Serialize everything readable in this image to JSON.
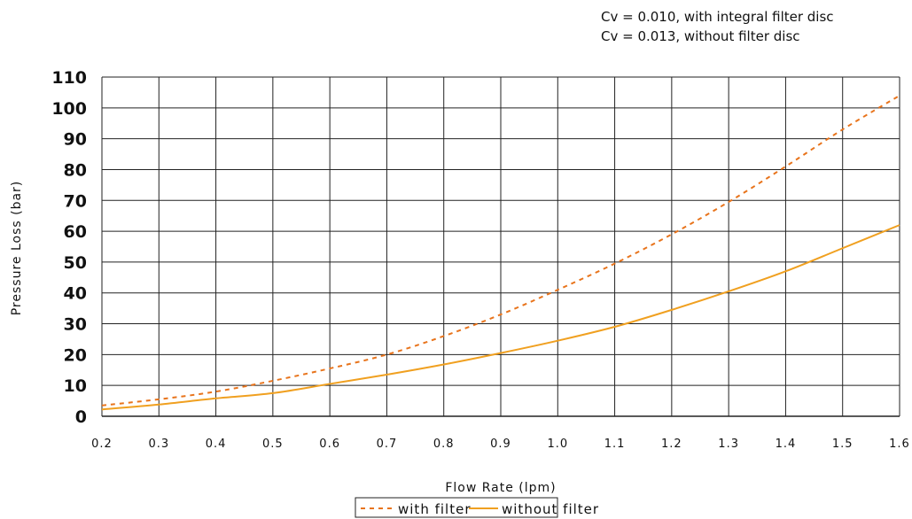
{
  "annotations": [
    "Cv = 0.010, with integral filter disc",
    "Cv = 0.013, without filter disc"
  ],
  "chart_data": {
    "type": "line",
    "title": "",
    "xlabel": "Flow Rate (lpm)",
    "ylabel": "Pressure Loss (bar)",
    "xlim": [
      0.2,
      1.6
    ],
    "ylim": [
      0,
      110
    ],
    "xticks": [
      "0.2",
      "0.3",
      "0.4",
      "0.5",
      "0.6",
      "0.7",
      "0.8",
      "0.9",
      "1.0",
      "1.1",
      "1.2",
      "1.3",
      "1.4",
      "1.5",
      "1.6"
    ],
    "yticks": [
      "0",
      "10",
      "20",
      "30",
      "40",
      "50",
      "60",
      "70",
      "80",
      "90",
      "100",
      "110"
    ],
    "grid": true,
    "legend_position": "bottom",
    "x": [
      0.2,
      0.3,
      0.4,
      0.5,
      0.6,
      0.7,
      0.8,
      0.9,
      1.0,
      1.1,
      1.2,
      1.3,
      1.4,
      1.5,
      1.6
    ],
    "series": [
      {
        "name": "with filter",
        "style": "dashed",
        "color": "#e8741c",
        "values": [
          3.5,
          5.5,
          8,
          11.5,
          15.5,
          20,
          26,
          33,
          41,
          49.5,
          59,
          69.5,
          81,
          93,
          104
        ]
      },
      {
        "name": "without filter",
        "style": "solid",
        "color": "#f0a020",
        "values": [
          2.2,
          3.8,
          5.8,
          7.5,
          10.5,
          13.5,
          16.8,
          20.5,
          24.5,
          29,
          34.5,
          40.5,
          47,
          54.5,
          62
        ]
      }
    ]
  }
}
